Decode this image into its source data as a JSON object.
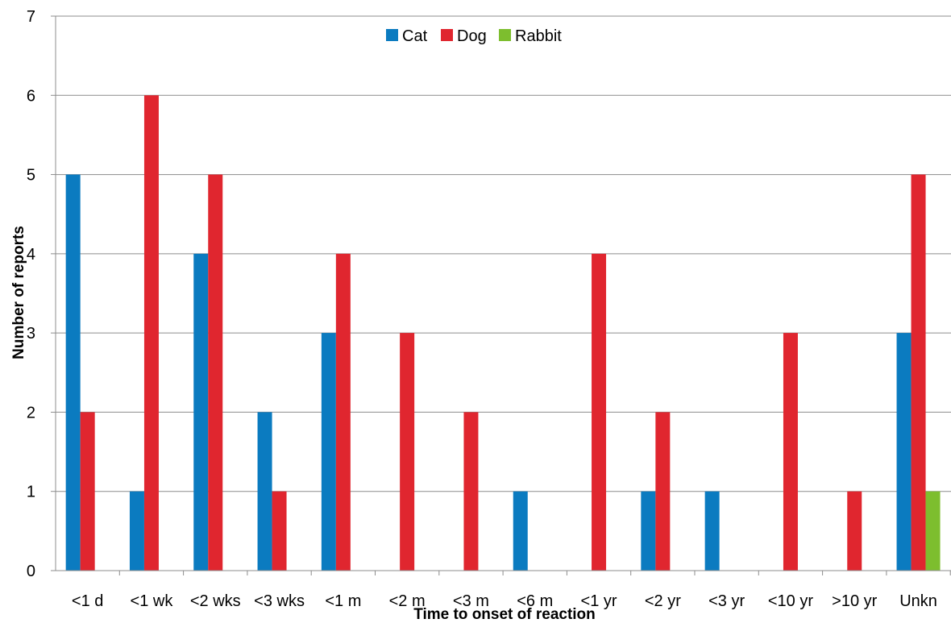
{
  "chart_data": {
    "type": "bar",
    "xlabel": "Time to onset of reaction",
    "ylabel": "Number of reports",
    "ylim": [
      0,
      7
    ],
    "yticks": [
      0,
      1,
      2,
      3,
      4,
      5,
      6,
      7
    ],
    "grid": true,
    "legend_position": "top-center",
    "categories": [
      "<1 d",
      "<1 wk",
      "<2 wks",
      "<3 wks",
      "<1 m",
      "<2 m",
      "<3 m",
      "<6 m",
      "<1 yr",
      "<2 yr",
      "<3 yr",
      "<10 yr",
      ">10 yr",
      "Unkn"
    ],
    "series": [
      {
        "name": "Cat",
        "color": "#0B7BC0",
        "values": [
          5,
          1,
          4,
          2,
          3,
          0,
          0,
          1,
          0,
          1,
          1,
          0,
          0,
          3
        ]
      },
      {
        "name": "Dog",
        "color": "#E0262F",
        "values": [
          2,
          6,
          5,
          1,
          4,
          3,
          2,
          0,
          4,
          2,
          0,
          3,
          1,
          5
        ]
      },
      {
        "name": "Rabbit",
        "color": "#7DBE2E",
        "values": [
          0,
          0,
          0,
          0,
          0,
          0,
          0,
          0,
          0,
          0,
          0,
          0,
          0,
          1
        ]
      }
    ]
  }
}
